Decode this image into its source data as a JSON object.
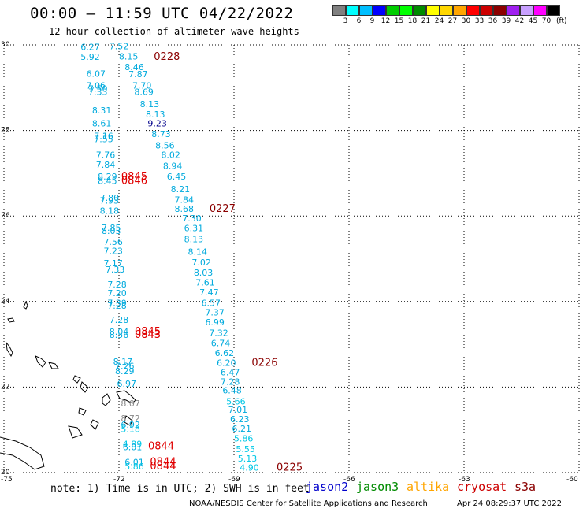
{
  "header": {
    "title": "00:00 – 11:59 UTC 04/22/2022",
    "subtitle": "12 hour collection of altimeter wave heights"
  },
  "colorbar": {
    "swatches": [
      "#808080",
      "#00ffff",
      "#00bfff",
      "#0000ff",
      "#00cd00",
      "#00ff00",
      "#008b00",
      "#ffff00",
      "#ffd700",
      "#ffa500",
      "#ff0000",
      "#cd0000",
      "#8b0000",
      "#a020f0",
      "#c8a0ff",
      "#ff00ff",
      "#000000"
    ],
    "labels": [
      "3",
      "6",
      "9",
      "12",
      "15",
      "18",
      "21",
      "24",
      "27",
      "30",
      "33",
      "36",
      "39",
      "42",
      "45",
      "70"
    ],
    "unit": "(ft)"
  },
  "axes": {
    "lat_labels": [
      "30",
      "28",
      "26",
      "24",
      "22",
      "20"
    ],
    "lon_labels": [
      "-75",
      "-72",
      "-69",
      "-66",
      "-63",
      "-60"
    ]
  },
  "colors": {
    "cyan": "#00aadd",
    "bright_cyan": "#00c8e6",
    "navy": "#00008b",
    "gray": "#888888",
    "red": "#e00000",
    "dark_red": "#8b0000"
  },
  "observations": [
    {
      "t": "6.27",
      "lon": -72.75,
      "lat": 29.95,
      "c": "cyan"
    },
    {
      "t": "7.52",
      "lon": -72.0,
      "lat": 29.97,
      "c": "cyan"
    },
    {
      "t": "8.15",
      "lon": -71.75,
      "lat": 29.73,
      "c": "cyan"
    },
    {
      "t": "5.92",
      "lon": -72.75,
      "lat": 29.72,
      "c": "cyan"
    },
    {
      "t": "0228",
      "lon": -70.75,
      "lat": 29.72,
      "c": "dark_red",
      "big": true
    },
    {
      "t": "8.46",
      "lon": -71.6,
      "lat": 29.48,
      "c": "cyan"
    },
    {
      "t": "6.07",
      "lon": -72.6,
      "lat": 29.33,
      "c": "cyan"
    },
    {
      "t": "7.87",
      "lon": -71.5,
      "lat": 29.32,
      "c": "cyan"
    },
    {
      "t": "7.70",
      "lon": -71.4,
      "lat": 29.05,
      "c": "cyan"
    },
    {
      "t": "7.06",
      "lon": -72.6,
      "lat": 29.05,
      "c": "cyan"
    },
    {
      "t": "7.50",
      "lon": -72.55,
      "lat": 28.98,
      "c": "cyan"
    },
    {
      "t": "7.33",
      "lon": -72.55,
      "lat": 28.9,
      "c": "cyan"
    },
    {
      "t": "8.69",
      "lon": -71.35,
      "lat": 28.9,
      "c": "cyan"
    },
    {
      "t": "8.13",
      "lon": -71.2,
      "lat": 28.62,
      "c": "cyan"
    },
    {
      "t": "8.31",
      "lon": -72.45,
      "lat": 28.47,
      "c": "cyan"
    },
    {
      "t": "8.13",
      "lon": -71.05,
      "lat": 28.38,
      "c": "cyan"
    },
    {
      "t": "8.61",
      "lon": -72.45,
      "lat": 28.17,
      "c": "cyan"
    },
    {
      "t": "9.23",
      "lon": -71.0,
      "lat": 28.17,
      "c": "navy"
    },
    {
      "t": "8.73",
      "lon": -70.9,
      "lat": 27.92,
      "c": "cyan"
    },
    {
      "t": "7.16",
      "lon": -72.4,
      "lat": 27.87,
      "c": "cyan"
    },
    {
      "t": "7.55",
      "lon": -72.4,
      "lat": 27.8,
      "c": "cyan"
    },
    {
      "t": "8.56",
      "lon": -70.8,
      "lat": 27.65,
      "c": "cyan"
    },
    {
      "t": "7.76",
      "lon": -72.35,
      "lat": 27.43,
      "c": "cyan"
    },
    {
      "t": "8.02",
      "lon": -70.65,
      "lat": 27.43,
      "c": "cyan"
    },
    {
      "t": "7.84",
      "lon": -72.35,
      "lat": 27.2,
      "c": "cyan"
    },
    {
      "t": "8.94",
      "lon": -70.6,
      "lat": 27.17,
      "c": "cyan"
    },
    {
      "t": "8.29",
      "lon": -72.3,
      "lat": 26.92,
      "c": "cyan"
    },
    {
      "t": "6.45",
      "lon": -70.5,
      "lat": 26.92,
      "c": "cyan"
    },
    {
      "t": "8.45",
      "lon": -72.3,
      "lat": 26.82,
      "c": "cyan"
    },
    {
      "t": "0845",
      "lon": -71.6,
      "lat": 26.92,
      "c": "red",
      "big": true
    },
    {
      "t": "0846",
      "lon": -71.6,
      "lat": 26.82,
      "c": "red",
      "big": true
    },
    {
      "t": "8.21",
      "lon": -70.4,
      "lat": 26.63,
      "c": "cyan"
    },
    {
      "t": "7.80",
      "lon": -72.25,
      "lat": 26.43,
      "c": "cyan"
    },
    {
      "t": "7.93",
      "lon": -72.25,
      "lat": 26.36,
      "c": "cyan"
    },
    {
      "t": "7.84",
      "lon": -70.3,
      "lat": 26.38,
      "c": "cyan"
    },
    {
      "t": "8.18",
      "lon": -72.25,
      "lat": 26.12,
      "c": "cyan"
    },
    {
      "t": "8.68",
      "lon": -70.3,
      "lat": 26.17,
      "c": "cyan"
    },
    {
      "t": "0227",
      "lon": -69.3,
      "lat": 26.17,
      "c": "dark_red",
      "big": true
    },
    {
      "t": "7.30",
      "lon": -70.1,
      "lat": 25.95,
      "c": "cyan"
    },
    {
      "t": "7.85",
      "lon": -72.2,
      "lat": 25.73,
      "c": "cyan"
    },
    {
      "t": "6.31",
      "lon": -70.05,
      "lat": 25.72,
      "c": "cyan"
    },
    {
      "t": "8.03",
      "lon": -72.2,
      "lat": 25.65,
      "c": "cyan"
    },
    {
      "t": "8.13",
      "lon": -70.05,
      "lat": 25.46,
      "c": "cyan"
    },
    {
      "t": "7.56",
      "lon": -72.15,
      "lat": 25.4,
      "c": "cyan"
    },
    {
      "t": "7.23",
      "lon": -72.15,
      "lat": 25.18,
      "c": "cyan"
    },
    {
      "t": "8.14",
      "lon": -69.95,
      "lat": 25.17,
      "c": "cyan"
    },
    {
      "t": "7.02",
      "lon": -69.85,
      "lat": 24.92,
      "c": "cyan"
    },
    {
      "t": "7.17",
      "lon": -72.15,
      "lat": 24.9,
      "c": "cyan"
    },
    {
      "t": "7.33",
      "lon": -72.1,
      "lat": 24.75,
      "c": "cyan"
    },
    {
      "t": "8.03",
      "lon": -69.8,
      "lat": 24.68,
      "c": "cyan"
    },
    {
      "t": "7.61",
      "lon": -69.75,
      "lat": 24.45,
      "c": "cyan"
    },
    {
      "t": "7.28",
      "lon": -72.05,
      "lat": 24.4,
      "c": "cyan"
    },
    {
      "t": "7.20",
      "lon": -72.05,
      "lat": 24.2,
      "c": "cyan"
    },
    {
      "t": "7.47",
      "lon": -69.65,
      "lat": 24.22,
      "c": "cyan"
    },
    {
      "t": "7.39",
      "lon": -72.05,
      "lat": 23.97,
      "c": "cyan"
    },
    {
      "t": "6.57",
      "lon": -69.6,
      "lat": 23.97,
      "c": "cyan"
    },
    {
      "t": "7.28",
      "lon": -72.05,
      "lat": 23.9,
      "c": "cyan"
    },
    {
      "t": "7.37",
      "lon": -69.5,
      "lat": 23.75,
      "c": "cyan"
    },
    {
      "t": "7.28",
      "lon": -72.0,
      "lat": 23.57,
      "c": "cyan"
    },
    {
      "t": "6.99",
      "lon": -69.5,
      "lat": 23.52,
      "c": "cyan"
    },
    {
      "t": "8.04",
      "lon": -72.0,
      "lat": 23.3,
      "c": "cyan"
    },
    {
      "t": "0845",
      "lon": -71.25,
      "lat": 23.3,
      "c": "red",
      "big": true
    },
    {
      "t": "8.56",
      "lon": -72.0,
      "lat": 23.22,
      "c": "cyan"
    },
    {
      "t": "0843",
      "lon": -71.25,
      "lat": 23.22,
      "c": "red",
      "big": true
    },
    {
      "t": "7.32",
      "lon": -69.4,
      "lat": 23.27,
      "c": "cyan"
    },
    {
      "t": "6.74",
      "lon": -69.35,
      "lat": 23.03,
      "c": "cyan"
    },
    {
      "t": "6.62",
      "lon": -69.25,
      "lat": 22.8,
      "c": "cyan"
    },
    {
      "t": "8.17",
      "lon": -71.9,
      "lat": 22.6,
      "c": "cyan"
    },
    {
      "t": "6.20",
      "lon": -69.2,
      "lat": 22.57,
      "c": "cyan"
    },
    {
      "t": "0226",
      "lon": -68.2,
      "lat": 22.57,
      "c": "dark_red",
      "big": true
    },
    {
      "t": "7.26",
      "lon": -71.85,
      "lat": 22.5,
      "c": "cyan"
    },
    {
      "t": "8.29",
      "lon": -71.85,
      "lat": 22.38,
      "c": "cyan"
    },
    {
      "t": "6.47",
      "lon": -69.1,
      "lat": 22.35,
      "c": "cyan"
    },
    {
      "t": "7.28",
      "lon": -69.1,
      "lat": 22.13,
      "c": "cyan"
    },
    {
      "t": "6.97",
      "lon": -71.8,
      "lat": 22.08,
      "c": "cyan"
    },
    {
      "t": "6.48",
      "lon": -69.05,
      "lat": 21.92,
      "c": "cyan"
    },
    {
      "t": "5.66",
      "lon": -68.95,
      "lat": 21.67,
      "c": "bright_cyan"
    },
    {
      "t": "8.07",
      "lon": -71.7,
      "lat": 21.62,
      "c": "gray"
    },
    {
      "t": "7.01",
      "lon": -68.9,
      "lat": 21.47,
      "c": "cyan"
    },
    {
      "t": "8.72",
      "lon": -71.7,
      "lat": 21.27,
      "c": "gray"
    },
    {
      "t": "6.23",
      "lon": -68.85,
      "lat": 21.25,
      "c": "cyan"
    },
    {
      "t": "6.92",
      "lon": -71.7,
      "lat": 21.12,
      "c": "cyan"
    },
    {
      "t": "5.18",
      "lon": -71.7,
      "lat": 21.02,
      "c": "bright_cyan"
    },
    {
      "t": "6.21",
      "lon": -68.8,
      "lat": 21.03,
      "c": "cyan"
    },
    {
      "t": "5.86",
      "lon": -68.75,
      "lat": 20.8,
      "c": "bright_cyan"
    },
    {
      "t": "4.89",
      "lon": -71.65,
      "lat": 20.67,
      "c": "bright_cyan"
    },
    {
      "t": "0844",
      "lon": -70.9,
      "lat": 20.62,
      "c": "red",
      "big": true
    },
    {
      "t": "6.01",
      "lon": -71.65,
      "lat": 20.6,
      "c": "cyan"
    },
    {
      "t": "5.55",
      "lon": -68.7,
      "lat": 20.55,
      "c": "bright_cyan"
    },
    {
      "t": "5.13",
      "lon": -68.65,
      "lat": 20.33,
      "c": "bright_cyan"
    },
    {
      "t": "6.01",
      "lon": -71.6,
      "lat": 20.25,
      "c": "cyan"
    },
    {
      "t": "0844",
      "lon": -70.85,
      "lat": 20.25,
      "c": "red",
      "big": true
    },
    {
      "t": "5.86",
      "lon": -71.6,
      "lat": 20.15,
      "c": "bright_cyan"
    },
    {
      "t": "0844",
      "lon": -70.85,
      "lat": 20.15,
      "c": "red",
      "big": true
    },
    {
      "t": "4.90",
      "lon": -68.6,
      "lat": 20.12,
      "c": "bright_cyan"
    },
    {
      "t": "0225",
      "lon": -67.55,
      "lat": 20.12,
      "c": "dark_red",
      "big": true
    }
  ],
  "legend": {
    "items": [
      {
        "label": "jason2",
        "color": "#0000cc"
      },
      {
        "label": "jason3",
        "color": "#008b00"
      },
      {
        "label": "altika",
        "color": "#ffa500"
      },
      {
        "label": "cryosat",
        "color": "#cd0000"
      },
      {
        "label": "s3a",
        "color": "#8b0000"
      }
    ]
  },
  "footer": {
    "note": "note: 1) Time is in UTC; 2) SWH is in feet",
    "credit": "NOAA/NESDIS Center for Satellite Applications and Research",
    "timestamp": "Apr 24 08:29:37 UTC 2022"
  }
}
